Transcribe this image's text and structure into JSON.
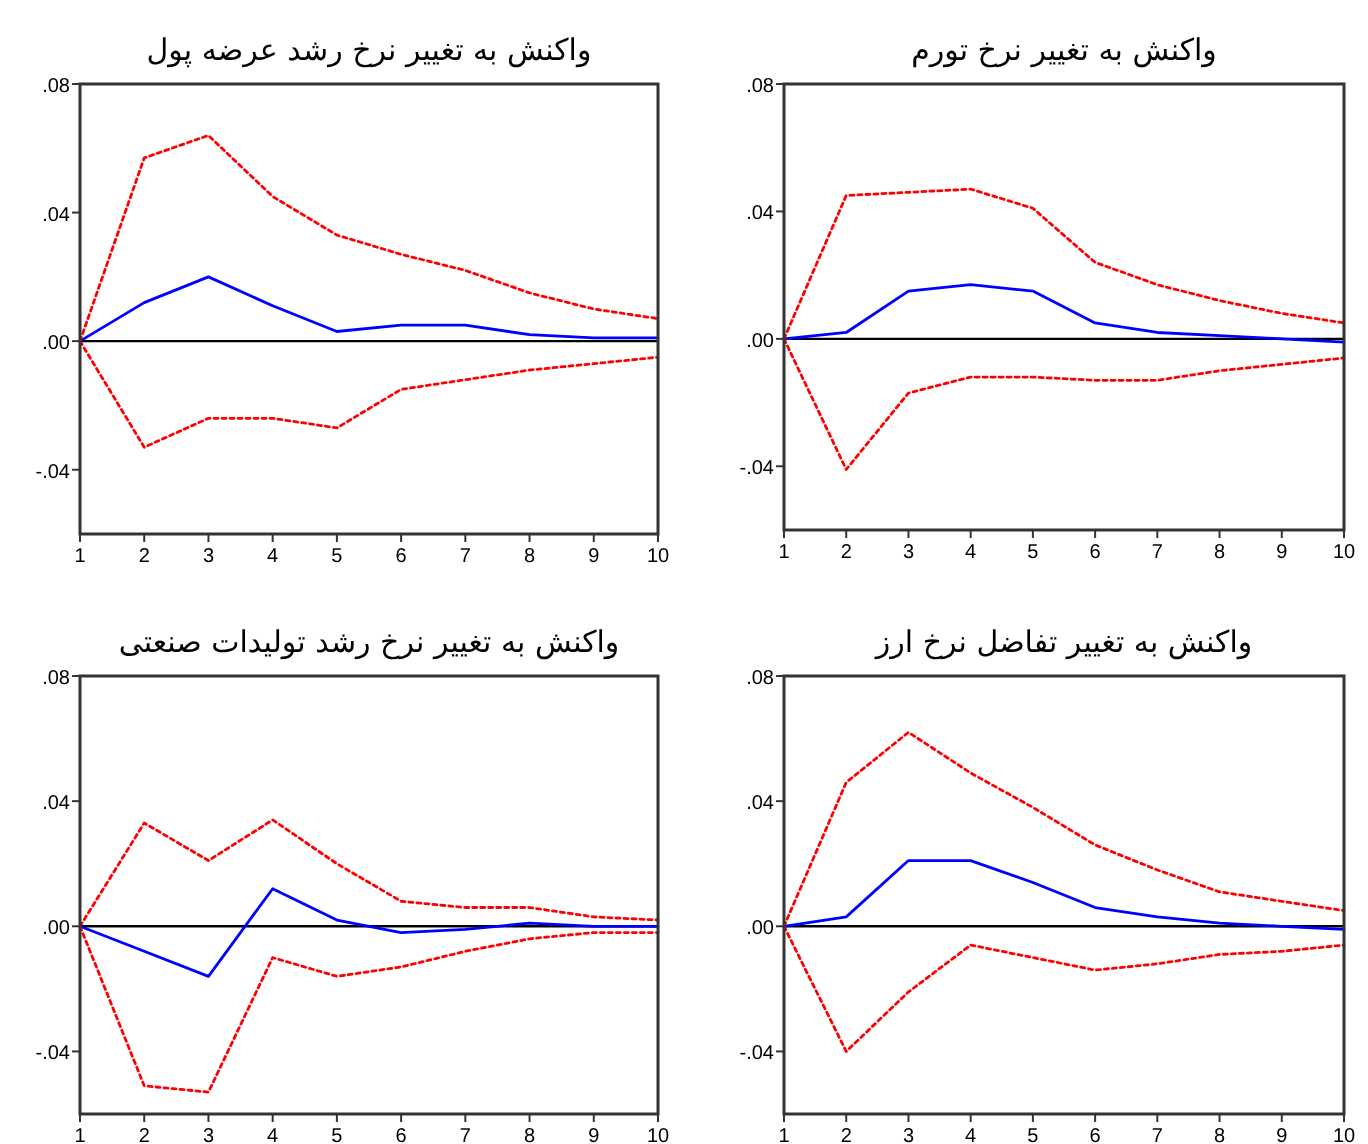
{
  "chart_data": [
    {
      "type": "line",
      "title": "واکنش به تغییر نرخ رشد عرضه پول",
      "x": [
        1,
        2,
        3,
        4,
        5,
        6,
        7,
        8,
        9,
        10
      ],
      "xlim": [
        1,
        10
      ],
      "xticks": [
        1,
        2,
        3,
        4,
        5,
        6,
        7,
        8,
        9,
        10
      ],
      "ylim": [
        -0.06,
        0.08
      ],
      "yticks": [
        {
          "value": 0.08,
          "label": ".08"
        },
        {
          "value": 0.04,
          "label": ".04"
        },
        {
          "value": 0,
          "label": ".00"
        },
        {
          "value": -0.04,
          "label": "-.04"
        }
      ],
      "grid": false,
      "ref_lines": [
        {
          "axis": "y",
          "value": 0,
          "color": "#000000",
          "line_style": "solid"
        }
      ],
      "series": [
        {
          "color": "#0000ff",
          "line_style": "solid",
          "values": [
            0,
            0.012,
            0.02,
            0.011,
            0.003,
            0.005,
            0.005,
            0.002,
            0.001,
            0.001
          ]
        },
        {
          "color": "#ff0000",
          "line_style": "dotted",
          "values": [
            0,
            0.057,
            0.064,
            0.045,
            0.033,
            0.027,
            0.022,
            0.015,
            0.01,
            0.007
          ]
        },
        {
          "color": "#ff0000",
          "line_style": "dotted",
          "values": [
            0,
            -0.033,
            -0.024,
            -0.024,
            -0.027,
            -0.015,
            -0.012,
            -0.009,
            -0.007,
            -0.005
          ]
        }
      ]
    },
    {
      "type": "line",
      "title": "واکنش به تغییر نرخ تورم",
      "x": [
        1,
        2,
        3,
        4,
        5,
        6,
        7,
        8,
        9,
        10
      ],
      "xlim": [
        1,
        10
      ],
      "xticks": [
        1,
        2,
        3,
        4,
        5,
        6,
        7,
        8,
        9,
        10
      ],
      "ylim": [
        -0.06,
        0.08
      ],
      "yticks": [
        {
          "value": 0.08,
          "label": ".08"
        },
        {
          "value": 0.04,
          "label": ".04"
        },
        {
          "value": 0,
          "label": ".00"
        },
        {
          "value": -0.04,
          "label": "-.04"
        }
      ],
      "grid": false,
      "ref_lines": [
        {
          "axis": "y",
          "value": 0,
          "color": "#000000",
          "line_style": "solid"
        }
      ],
      "series": [
        {
          "color": "#0000ff",
          "line_style": "solid",
          "values": [
            0,
            0.002,
            0.015,
            0.017,
            0.015,
            0.005,
            0.002,
            0.001,
            0,
            -0.001
          ]
        },
        {
          "color": "#ff0000",
          "line_style": "dotted",
          "values": [
            0,
            0.045,
            0.046,
            0.047,
            0.041,
            0.024,
            0.017,
            0.012,
            0.008,
            0.005
          ]
        },
        {
          "color": "#ff0000",
          "line_style": "dotted",
          "values": [
            0,
            -0.041,
            -0.017,
            -0.012,
            -0.012,
            -0.013,
            -0.013,
            -0.01,
            -0.008,
            -0.006
          ]
        }
      ]
    },
    {
      "type": "line",
      "title": "واکنش به تغییر نرخ رشد تولیدات صنعتی",
      "x": [
        1,
        2,
        3,
        4,
        5,
        6,
        7,
        8,
        9,
        10
      ],
      "xlim": [
        1,
        10
      ],
      "xticks": [
        1,
        2,
        3,
        4,
        5,
        6,
        7,
        8,
        9,
        10
      ],
      "ylim": [
        -0.06,
        0.08
      ],
      "yticks": [
        {
          "value": 0.08,
          "label": ".08"
        },
        {
          "value": 0.04,
          "label": ".04"
        },
        {
          "value": 0,
          "label": ".00"
        },
        {
          "value": -0.04,
          "label": "-.04"
        }
      ],
      "grid": false,
      "ref_lines": [
        {
          "axis": "y",
          "value": 0,
          "color": "#000000",
          "line_style": "solid"
        }
      ],
      "series": [
        {
          "color": "#0000ff",
          "line_style": "solid",
          "values": [
            0,
            -0.008,
            -0.016,
            0.012,
            0.002,
            -0.002,
            -0.001,
            0.001,
            0,
            0
          ]
        },
        {
          "color": "#ff0000",
          "line_style": "dotted",
          "values": [
            0,
            0.033,
            0.021,
            0.034,
            0.02,
            0.008,
            0.006,
            0.006,
            0.003,
            0.002
          ]
        },
        {
          "color": "#ff0000",
          "line_style": "dotted",
          "values": [
            0,
            -0.051,
            -0.053,
            -0.01,
            -0.016,
            -0.013,
            -0.008,
            -0.004,
            -0.002,
            -0.002
          ]
        }
      ]
    },
    {
      "type": "line",
      "title": "واکنش به تغییر تفاضل نرخ ارز",
      "x": [
        1,
        2,
        3,
        4,
        5,
        6,
        7,
        8,
        9,
        10
      ],
      "xlim": [
        1,
        10
      ],
      "xticks": [
        1,
        2,
        3,
        4,
        5,
        6,
        7,
        8,
        9,
        10
      ],
      "ylim": [
        -0.06,
        0.08
      ],
      "yticks": [
        {
          "value": 0.08,
          "label": ".08"
        },
        {
          "value": 0.04,
          "label": ".04"
        },
        {
          "value": 0,
          "label": ".00"
        },
        {
          "value": -0.04,
          "label": "-.04"
        }
      ],
      "grid": false,
      "ref_lines": [
        {
          "axis": "y",
          "value": 0,
          "color": "#000000",
          "line_style": "solid"
        }
      ],
      "series": [
        {
          "color": "#0000ff",
          "line_style": "solid",
          "values": [
            0,
            0.003,
            0.021,
            0.021,
            0.014,
            0.006,
            0.003,
            0.001,
            0,
            -0.001
          ]
        },
        {
          "color": "#ff0000",
          "line_style": "dotted",
          "values": [
            0,
            0.046,
            0.062,
            0.049,
            0.038,
            0.026,
            0.018,
            0.011,
            0.008,
            0.005
          ]
        },
        {
          "color": "#ff0000",
          "line_style": "dotted",
          "values": [
            0,
            -0.04,
            -0.021,
            -0.006,
            -0.01,
            -0.014,
            -0.012,
            -0.009,
            -0.008,
            -0.006
          ]
        }
      ]
    }
  ]
}
